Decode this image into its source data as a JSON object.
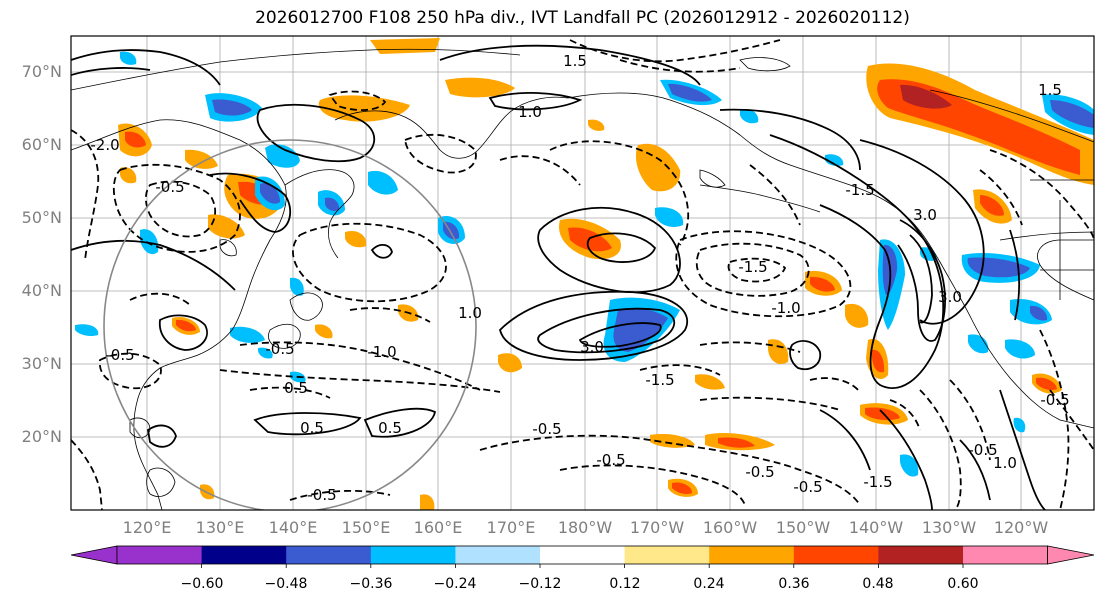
{
  "title": "2026012700 F108 250 hPa div., IVT Landfall PC (2026012912 - 2026020112)",
  "lat_labels": [
    "70°N",
    "60°N",
    "50°N",
    "40°N",
    "30°N",
    "20°N"
  ],
  "lon_labels": [
    "120°E",
    "130°E",
    "140°E",
    "150°E",
    "160°E",
    "170°E",
    "180°W",
    "170°W",
    "160°W",
    "150°W",
    "140°W",
    "130°W",
    "120°W"
  ],
  "colorbar": {
    "ticks": [
      "−0.60",
      "−0.48",
      "−0.36",
      "−0.24",
      "−0.12",
      "0.12",
      "0.24",
      "0.36",
      "0.48",
      "0.60"
    ],
    "colors": [
      "#9932cc",
      "#00008b",
      "#3b5bd0",
      "#00bfff",
      "#b0e2ff",
      "#ffffff",
      "#ffe88a",
      "#ffa500",
      "#ff4500",
      "#b22222",
      "#ff88b0"
    ]
  },
  "contour_labels": [
    "1.0",
    "1.0",
    "1.5",
    "3.0",
    "-1.5",
    "-1.5",
    "-1.0",
    "-0.5",
    "-0.5",
    "-0.5",
    "0.5",
    "0.5",
    "0.5",
    "-0.5",
    "-0.5",
    "-0.5",
    "-2.0",
    "-1.5",
    "3.0",
    "-1.0",
    "-0.5",
    "-0.5",
    "-0.5",
    "-1.5",
    "3.0",
    "-0.5",
    "1.0",
    "1.5"
  ]
}
